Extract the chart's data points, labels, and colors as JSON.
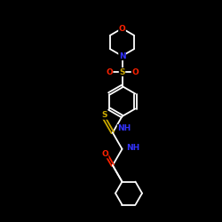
{
  "background_color": "#000000",
  "bond_color": "#ffffff",
  "atom_colors": {
    "O": "#ff2200",
    "N": "#3333ff",
    "S": "#ccaa00",
    "C": "#ffffff"
  },
  "figsize": [
    2.5,
    2.5
  ],
  "dpi": 100,
  "lw": 1.3
}
